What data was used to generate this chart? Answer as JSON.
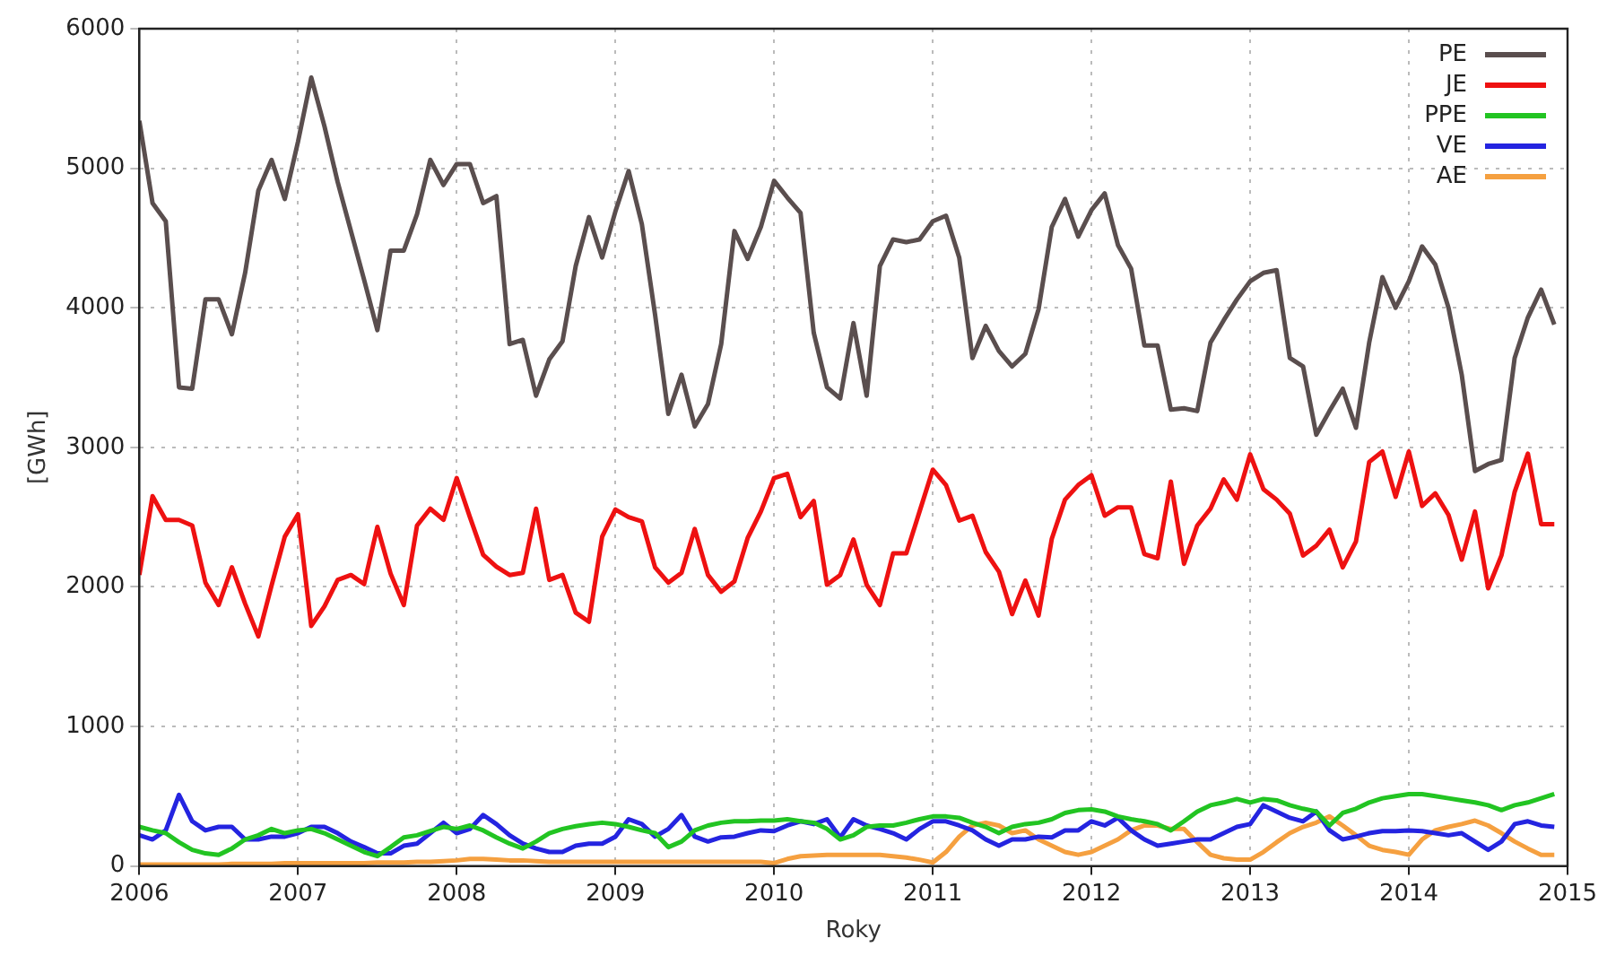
{
  "chart_data": {
    "type": "line",
    "xlabel": "Roky",
    "ylabel": "[GWh]",
    "xlim": [
      "2006",
      "2015"
    ],
    "xticks": [
      "2006",
      "2007",
      "2008",
      "2009",
      "2010",
      "2011",
      "2012",
      "2013",
      "2014",
      "2015"
    ],
    "ylim": [
      0,
      6000
    ],
    "yticks": [
      0,
      1000,
      2000,
      3000,
      4000,
      5000,
      6000
    ],
    "grid": true,
    "legend": "top right",
    "marker": "none",
    "line_style": "solid",
    "x": [
      "2006-01",
      "2006-02",
      "2006-03",
      "2006-04",
      "2006-05",
      "2006-06",
      "2006-07",
      "2006-08",
      "2006-09",
      "2006-10",
      "2006-11",
      "2006-12",
      "2007-01",
      "2007-02",
      "2007-03",
      "2007-04",
      "2007-05",
      "2007-06",
      "2007-07",
      "2007-08",
      "2007-09",
      "2007-10",
      "2007-11",
      "2007-12",
      "2008-01",
      "2008-02",
      "2008-03",
      "2008-04",
      "2008-05",
      "2008-06",
      "2008-07",
      "2008-08",
      "2008-09",
      "2008-10",
      "2008-11",
      "2008-12",
      "2009-01",
      "2009-02",
      "2009-03",
      "2009-04",
      "2009-05",
      "2009-06",
      "2009-07",
      "2009-08",
      "2009-09",
      "2009-10",
      "2009-11",
      "2009-12",
      "2010-01",
      "2010-02",
      "2010-03",
      "2010-04",
      "2010-05",
      "2010-06",
      "2010-07",
      "2010-08",
      "2010-09",
      "2010-10",
      "2010-11",
      "2010-12",
      "2011-01",
      "2011-02",
      "2011-03",
      "2011-04",
      "2011-05",
      "2011-06",
      "2011-07",
      "2011-08",
      "2011-09",
      "2011-10",
      "2011-11",
      "2011-12",
      "2012-01",
      "2012-02",
      "2012-03",
      "2012-04",
      "2012-05",
      "2012-06",
      "2012-07",
      "2012-08",
      "2012-09",
      "2012-10",
      "2012-11",
      "2012-12",
      "2013-01",
      "2013-02",
      "2013-03",
      "2013-04",
      "2013-05",
      "2013-06",
      "2013-07",
      "2013-08",
      "2013-09",
      "2013-10",
      "2013-11",
      "2013-12",
      "2014-01",
      "2014-02",
      "2014-03",
      "2014-04",
      "2014-05",
      "2014-06",
      "2014-07",
      "2014-08",
      "2014-09",
      "2014-10",
      "2014-11",
      "2014-12"
    ],
    "series": [
      {
        "name": "PE",
        "color": "#5a4e4e",
        "values": [
          5340,
          4750,
          4620,
          3430,
          3420,
          4060,
          4060,
          3810,
          4250,
          4840,
          5060,
          4780,
          5190,
          5650,
          5300,
          4900,
          4550,
          4200,
          3840,
          4410,
          4410,
          4670,
          5060,
          4880,
          5030,
          5030,
          4750,
          4800,
          3740,
          3770,
          3370,
          3630,
          3760,
          4300,
          4650,
          4360,
          4690,
          4980,
          4600,
          3950,
          3240,
          3520,
          3150,
          3310,
          3740,
          4550,
          4350,
          4580,
          4910,
          4790,
          4680,
          3820,
          3430,
          3350,
          3890,
          3370,
          4300,
          4490,
          4470,
          4490,
          4620,
          4660,
          4360,
          3640,
          3870,
          3690,
          3580,
          3670,
          3990,
          4580,
          4780,
          4510,
          4700,
          4820,
          4450,
          4280,
          3730,
          3730,
          3270,
          3280,
          3260,
          3750,
          3910,
          4060,
          4190,
          4250,
          4270,
          3640,
          3580,
          3090,
          3260,
          3420,
          3140,
          3750,
          4220,
          4000,
          4190,
          4440,
          4310,
          4000,
          3520,
          2830,
          2880,
          2910,
          3640,
          3930,
          4130,
          3880
        ]
      },
      {
        "name": "JE",
        "color": "#ee1111",
        "values": [
          2085,
          2650,
          2480,
          2480,
          2440,
          2030,
          1870,
          2140,
          1880,
          1645,
          2010,
          2360,
          2520,
          1720,
          1860,
          2050,
          2085,
          2020,
          2430,
          2095,
          1870,
          2440,
          2560,
          2480,
          2780,
          2500,
          2230,
          2145,
          2085,
          2100,
          2560,
          2050,
          2085,
          1815,
          1750,
          2360,
          2555,
          2500,
          2470,
          2140,
          2030,
          2100,
          2415,
          2085,
          1965,
          2040,
          2350,
          2540,
          2780,
          2810,
          2500,
          2615,
          2015,
          2085,
          2340,
          2015,
          1870,
          2240,
          2240,
          2540,
          2840,
          2730,
          2475,
          2510,
          2250,
          2110,
          1805,
          2045,
          1795,
          2345,
          2625,
          2730,
          2800,
          2510,
          2570,
          2570,
          2235,
          2205,
          2755,
          2165,
          2440,
          2560,
          2770,
          2625,
          2950,
          2700,
          2625,
          2525,
          2225,
          2295,
          2410,
          2140,
          2325,
          2895,
          2970,
          2645,
          2970,
          2580,
          2670,
          2515,
          2195,
          2540,
          1990,
          2225,
          2680,
          2955,
          2450,
          2450
        ]
      },
      {
        "name": "PPE",
        "color": "#22c422",
        "values": [
          280,
          255,
          235,
          170,
          115,
          90,
          80,
          125,
          190,
          220,
          265,
          235,
          255,
          265,
          235,
          190,
          145,
          100,
          70,
          135,
          205,
          220,
          250,
          280,
          265,
          290,
          255,
          205,
          160,
          125,
          175,
          235,
          265,
          285,
          300,
          310,
          300,
          280,
          255,
          235,
          135,
          175,
          255,
          290,
          310,
          320,
          320,
          325,
          325,
          335,
          320,
          310,
          265,
          190,
          220,
          280,
          290,
          290,
          310,
          335,
          355,
          355,
          345,
          310,
          280,
          235,
          280,
          300,
          310,
          335,
          380,
          400,
          405,
          390,
          355,
          335,
          320,
          300,
          255,
          320,
          390,
          435,
          455,
          480,
          455,
          480,
          470,
          435,
          410,
          390,
          290,
          380,
          410,
          455,
          485,
          500,
          515,
          515,
          500,
          485,
          470,
          455,
          435,
          400,
          435,
          455,
          485,
          515
        ]
      },
      {
        "name": "VE",
        "color": "#2424e0",
        "values": [
          220,
          190,
          255,
          510,
          320,
          255,
          280,
          280,
          190,
          190,
          210,
          210,
          235,
          280,
          280,
          235,
          175,
          135,
          90,
          90,
          145,
          160,
          235,
          310,
          235,
          265,
          365,
          300,
          220,
          160,
          125,
          100,
          100,
          145,
          160,
          160,
          210,
          335,
          300,
          210,
          265,
          365,
          210,
          175,
          205,
          210,
          235,
          255,
          250,
          290,
          320,
          300,
          335,
          205,
          335,
          290,
          265,
          235,
          190,
          265,
          320,
          320,
          290,
          255,
          190,
          145,
          190,
          190,
          210,
          205,
          255,
          255,
          320,
          290,
          345,
          255,
          190,
          145,
          160,
          175,
          190,
          190,
          235,
          280,
          300,
          435,
          390,
          345,
          320,
          390,
          255,
          190,
          210,
          235,
          250,
          250,
          255,
          250,
          235,
          220,
          235,
          175,
          115,
          175,
          300,
          320,
          290,
          280
        ]
      },
      {
        "name": "AE",
        "color": "#f5a040",
        "values": [
          10,
          10,
          10,
          10,
          10,
          10,
          10,
          15,
          15,
          15,
          15,
          20,
          20,
          20,
          20,
          20,
          20,
          20,
          25,
          25,
          25,
          30,
          30,
          35,
          40,
          50,
          50,
          45,
          40,
          40,
          35,
          30,
          30,
          30,
          30,
          30,
          30,
          30,
          30,
          30,
          30,
          30,
          30,
          30,
          30,
          30,
          30,
          30,
          20,
          50,
          70,
          75,
          80,
          80,
          80,
          80,
          80,
          70,
          60,
          45,
          25,
          100,
          210,
          290,
          310,
          290,
          235,
          255,
          190,
          145,
          100,
          80,
          100,
          145,
          190,
          255,
          290,
          290,
          265,
          265,
          170,
          80,
          55,
          45,
          45,
          100,
          170,
          235,
          280,
          310,
          355,
          290,
          220,
          145,
          115,
          100,
          80,
          190,
          255,
          280,
          300,
          325,
          290,
          235,
          175,
          125,
          80,
          80
        ]
      }
    ]
  }
}
